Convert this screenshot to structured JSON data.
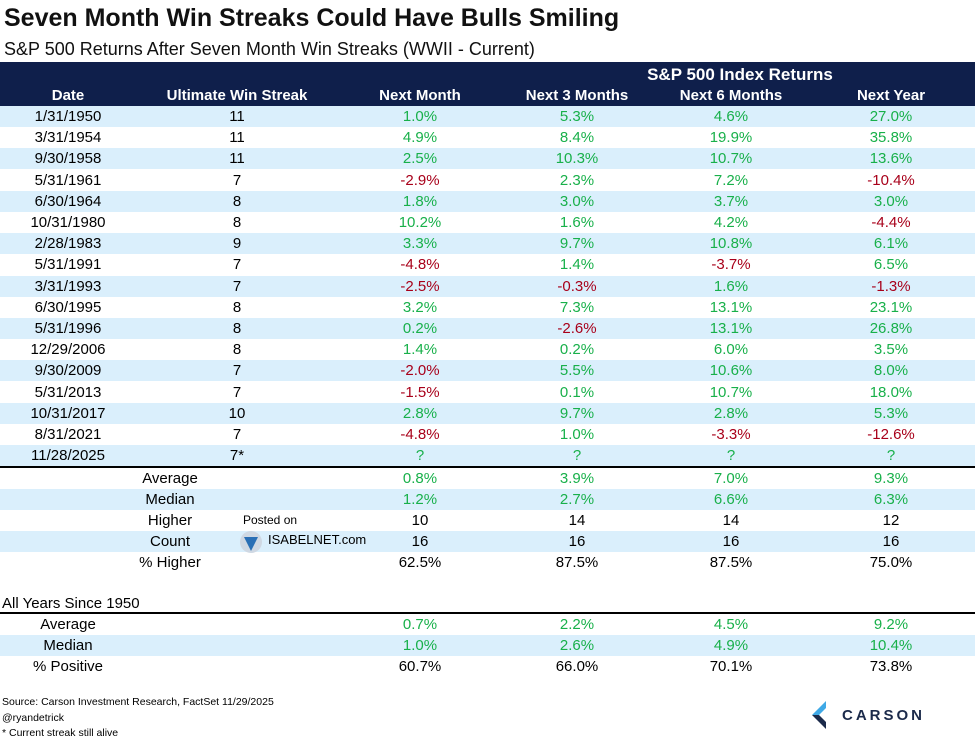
{
  "title": "Seven Month Win Streaks Could Have Bulls Smiling",
  "subtitle": "S&P 500 Returns After Seven Month Win Streaks (WWII - Current)",
  "chart_data": {
    "type": "table",
    "group_header": "S&P 500 Index Returns",
    "columns": [
      "Date",
      "Ultimate Win Streak",
      "Next Month",
      "Next 3 Months",
      "Next 6 Months",
      "Next Year"
    ],
    "rows": [
      [
        "1/31/1950",
        "11",
        "1.0%",
        "5.3%",
        "4.6%",
        "27.0%"
      ],
      [
        "3/31/1954",
        "11",
        "4.9%",
        "8.4%",
        "19.9%",
        "35.8%"
      ],
      [
        "9/30/1958",
        "11",
        "2.5%",
        "10.3%",
        "10.7%",
        "13.6%"
      ],
      [
        "5/31/1961",
        "7",
        "-2.9%",
        "2.3%",
        "7.2%",
        "-10.4%"
      ],
      [
        "6/30/1964",
        "8",
        "1.8%",
        "3.0%",
        "3.7%",
        "3.0%"
      ],
      [
        "10/31/1980",
        "8",
        "10.2%",
        "1.6%",
        "4.2%",
        "-4.4%"
      ],
      [
        "2/28/1983",
        "9",
        "3.3%",
        "9.7%",
        "10.8%",
        "6.1%"
      ],
      [
        "5/31/1991",
        "7",
        "-4.8%",
        "1.4%",
        "-3.7%",
        "6.5%"
      ],
      [
        "3/31/1993",
        "7",
        "-2.5%",
        "-0.3%",
        "1.6%",
        "-1.3%"
      ],
      [
        "6/30/1995",
        "8",
        "3.2%",
        "7.3%",
        "13.1%",
        "23.1%"
      ],
      [
        "5/31/1996",
        "8",
        "0.2%",
        "-2.6%",
        "13.1%",
        "26.8%"
      ],
      [
        "12/29/2006",
        "8",
        "1.4%",
        "0.2%",
        "6.0%",
        "3.5%"
      ],
      [
        "9/30/2009",
        "7",
        "-2.0%",
        "5.5%",
        "10.6%",
        "8.0%"
      ],
      [
        "5/31/2013",
        "7",
        "-1.5%",
        "0.1%",
        "10.7%",
        "18.0%"
      ],
      [
        "10/31/2017",
        "10",
        "2.8%",
        "9.7%",
        "2.8%",
        "5.3%"
      ],
      [
        "8/31/2021",
        "7",
        "-4.8%",
        "1.0%",
        "-3.3%",
        "-12.6%"
      ],
      [
        "11/28/2025",
        "7*",
        "?",
        "?",
        "?",
        "?"
      ]
    ],
    "summary": [
      {
        "label": "Average",
        "values": [
          "0.8%",
          "3.9%",
          "7.0%",
          "9.3%"
        ],
        "colored": true
      },
      {
        "label": "Median",
        "values": [
          "1.2%",
          "2.7%",
          "6.6%",
          "6.3%"
        ],
        "colored": true
      },
      {
        "label": "Higher",
        "values": [
          "10",
          "14",
          "14",
          "12"
        ],
        "colored": false
      },
      {
        "label": "Count",
        "values": [
          "16",
          "16",
          "16",
          "16"
        ],
        "colored": false
      },
      {
        "label": "% Higher",
        "values": [
          "62.5%",
          "87.5%",
          "87.5%",
          "75.0%"
        ],
        "colored": false
      }
    ],
    "all_years_title": "All Years Since 1950",
    "all_years": [
      {
        "label": "Average",
        "values": [
          "0.7%",
          "2.2%",
          "4.5%",
          "9.2%"
        ],
        "colored": true
      },
      {
        "label": "Median",
        "values": [
          "1.0%",
          "2.6%",
          "4.9%",
          "10.4%"
        ],
        "colored": true
      },
      {
        "label": "% Positive",
        "values": [
          "60.7%",
          "66.0%",
          "70.1%",
          "73.8%"
        ],
        "colored": false
      }
    ]
  },
  "colors": {
    "header": "#0f1f4b",
    "alt_row": "#daeffc",
    "positive": "#18b04a",
    "negative": "#a8001a"
  },
  "watermark": {
    "line1": "Posted on",
    "line2": "ISABELNET.com"
  },
  "footer": {
    "source": "Source: Carson Investment Research, FactSet 11/29/2025",
    "handle": "@ryandetrick",
    "note": "* Current streak still alive"
  },
  "logo": {
    "text": "CARSON"
  }
}
